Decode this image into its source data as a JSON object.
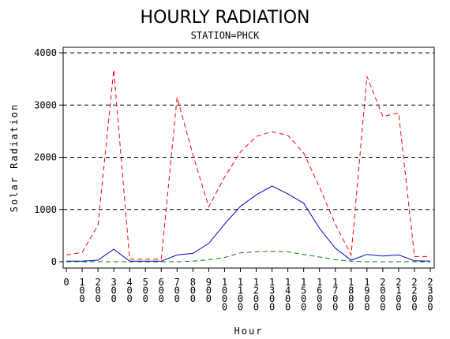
{
  "chart_data": {
    "type": "line",
    "title": "HOURLY RADIATION",
    "subtitle": "STATION=PHCK",
    "xlabel": "Hour",
    "ylabel": "Solar Radiation",
    "ylim": [
      0,
      4000
    ],
    "yticks": [
      0,
      1000,
      2000,
      3000,
      4000
    ],
    "ytick_labels": [
      "0",
      "1000",
      "2000",
      "3000",
      "4000"
    ],
    "grid": "horizontal dashed at y ticks",
    "x": [
      0,
      100,
      200,
      300,
      400,
      500,
      600,
      700,
      800,
      900,
      1000,
      1100,
      1200,
      1300,
      1400,
      1500,
      1600,
      1700,
      1800,
      1900,
      2000,
      2100,
      2200,
      2300
    ],
    "xtick_labels": [
      "0",
      "100",
      "200",
      "300",
      "400",
      "500",
      "600",
      "700",
      "800",
      "900",
      "1000",
      "1100",
      "1200",
      "1300",
      "1400",
      "1500",
      "1600",
      "1700",
      "1800",
      "1900",
      "2000",
      "2100",
      "2200",
      "2300"
    ],
    "series": [
      {
        "color": "#ff0000",
        "dash": "dashed",
        "values": [
          130,
          180,
          700,
          3680,
          50,
          50,
          50,
          3150,
          2050,
          1050,
          1620,
          2100,
          2400,
          2490,
          2420,
          2080,
          1430,
          720,
          130,
          3550,
          2780,
          2850,
          100,
          100
        ]
      },
      {
        "color": "#0000cc",
        "dash": "solid",
        "values": [
          10,
          10,
          30,
          240,
          10,
          10,
          10,
          130,
          160,
          350,
          720,
          1060,
          1280,
          1450,
          1300,
          1120,
          640,
          260,
          30,
          140,
          110,
          130,
          20,
          10
        ]
      },
      {
        "color": "#008000",
        "dash": "dashed",
        "values": [
          0,
          0,
          0,
          0,
          0,
          0,
          0,
          0,
          10,
          40,
          80,
          170,
          190,
          200,
          190,
          140,
          90,
          40,
          10,
          0,
          0,
          0,
          0,
          0
        ]
      }
    ]
  }
}
